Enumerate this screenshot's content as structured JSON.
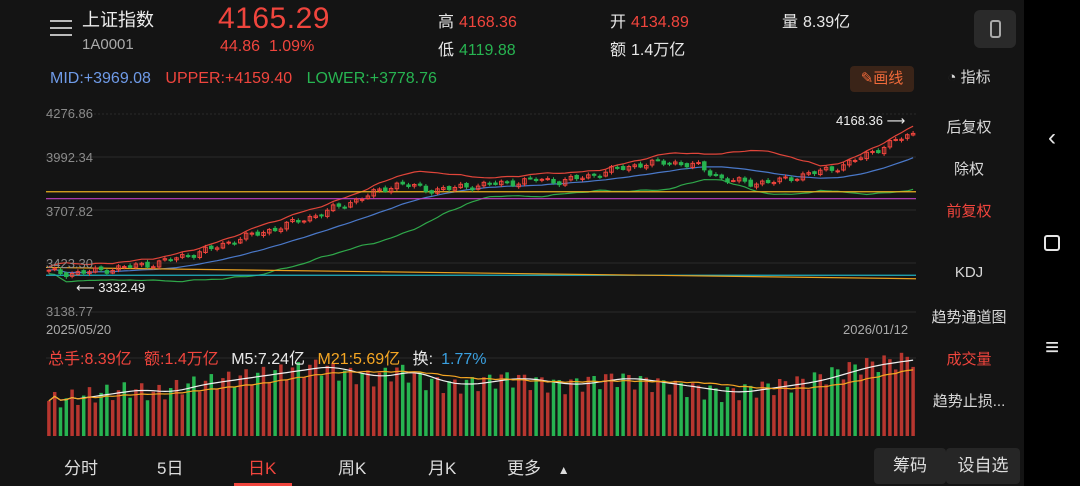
{
  "header": {
    "title": "上证指数",
    "code": "1A0001",
    "price": "4165.29",
    "change": "44.86",
    "change_pct": "1.09%",
    "high_label": "高",
    "high": "4168.36",
    "low_label": "低",
    "low": "4119.88",
    "open_label": "开",
    "open": "4134.89",
    "amount_label": "额",
    "amount": "1.4万亿",
    "volume_label": "量",
    "volume": "8.39亿"
  },
  "indicator": {
    "mid": "MID:+3969.08",
    "upper": "UPPER:+4159.40",
    "lower": "LOWER:+3778.76",
    "draw_button": "画线"
  },
  "side_menu": {
    "indicator_title": "指标",
    "items": [
      "后复权",
      "除权",
      "前复权",
      "KDJ",
      "趋势通道图",
      "成交量",
      "趋势止损..."
    ],
    "active": [
      "前复权",
      "成交量"
    ]
  },
  "axes": {
    "y_ticks": [
      "4276.86",
      "3992.34",
      "3707.82",
      "3423.30",
      "3138.77"
    ],
    "date_start": "2025/05/20",
    "date_end": "2026/01/12",
    "max_marker": "4168.36",
    "min_marker": "3332.49"
  },
  "volume_bar": {
    "total_hands": "总手:8.39亿",
    "amount": "额:1.4万亿",
    "m5": "M5:7.24亿",
    "m21": "M21:5.69亿",
    "turnover_label": "换:",
    "turnover": "1.77%"
  },
  "tabs": [
    "分时",
    "5日",
    "日K",
    "周K",
    "月K",
    "更多"
  ],
  "active_tab": "日K",
  "right_buttons": [
    "筹码",
    "设自选"
  ],
  "colors": {
    "up": "#f0453d",
    "down": "#27b451",
    "mid_line": "#4a78c8",
    "upper_line": "#e0453a",
    "lower_line": "#2fa84a",
    "m21": "#f5a623"
  },
  "chart_data": {
    "type": "candlestick",
    "x_range": [
      "2025/05/20",
      "2026/01/12"
    ],
    "y_range": [
      3138.77,
      4276.86
    ],
    "close_approx": [
      3370,
      3360,
      3380,
      3400,
      3420,
      3460,
      3500,
      3560,
      3600,
      3650,
      3700,
      3760,
      3820,
      3880,
      3840,
      3850,
      3870,
      3880,
      3900,
      3890,
      3920,
      3960,
      3990,
      4000,
      3980,
      3900,
      3880,
      3890,
      3930,
      3960,
      4020,
      4100,
      4165.29
    ],
    "volume_approx": [
      0.45,
      0.5,
      0.55,
      0.6,
      0.55,
      0.65,
      0.7,
      0.75,
      0.8,
      0.85,
      0.9,
      0.8,
      0.75,
      0.85,
      0.7,
      0.65,
      0.7,
      0.75,
      0.7,
      0.65,
      0.7,
      0.75,
      0.7,
      0.65,
      0.6,
      0.55,
      0.6,
      0.65,
      0.7,
      0.8,
      0.9,
      0.95,
      1.0
    ]
  }
}
